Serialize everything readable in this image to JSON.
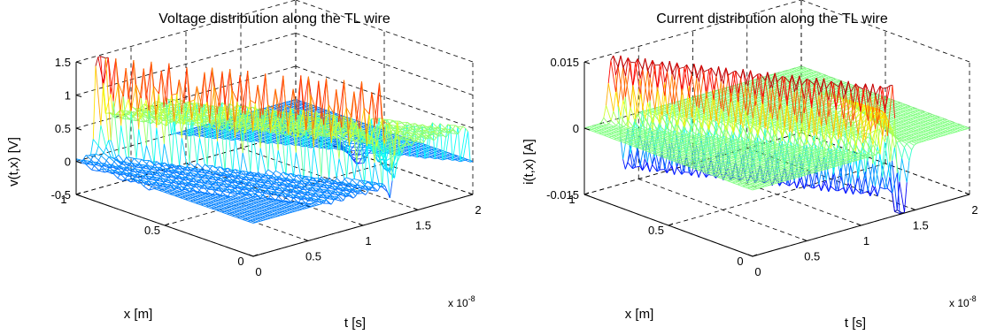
{
  "colormap": [
    "#00008f",
    "#0000ff",
    "#0080ff",
    "#00ffff",
    "#80ff80",
    "#ffff00",
    "#ff8000",
    "#ff0000",
    "#800000"
  ],
  "chart_data": [
    {
      "type": "surface",
      "title": "Voltage distribution along the TL wire",
      "xlabel": "x [m]",
      "tlabel": "t [s]",
      "zlabel": "v(t,x) [V]",
      "t_scale_label": "x 10",
      "t_scale_exp": "-8",
      "xlim": [
        0,
        1
      ],
      "tlim": [
        0,
        2e-08
      ],
      "zlim": [
        -0.5,
        1.5
      ],
      "x_ticks": [
        "0",
        "0.5",
        "1"
      ],
      "t_ticks": [
        "0",
        "0.5",
        "1",
        "1.5",
        "2"
      ],
      "z_ticks": [
        "-0.5",
        "0",
        "0.5",
        "1",
        "1.5"
      ],
      "z_tick_values": [
        -0.5,
        0,
        0.5,
        1,
        1.5
      ],
      "grid": true,
      "baseline": 0,
      "surface_description": "Incident voltage pulse (peak ~1.45 V at x=1, t~0.2e-8 s) travels toward x=0 arriving near t=1.3e-8 s, followed by a negative reflected dip (~-0.45 V)",
      "peaks": [
        {
          "x": 1.0,
          "t": 2e-09,
          "v": 1.45
        },
        {
          "x": 0.0,
          "t": 1.35e-08,
          "v": -0.45
        }
      ]
    },
    {
      "type": "surface",
      "title": "Current distribution along the TL wire",
      "xlabel": "x [m]",
      "tlabel": "t [s]",
      "zlabel": "i(t,x) [A]",
      "t_scale_label": "x 10",
      "t_scale_exp": "-8",
      "xlim": [
        0,
        1
      ],
      "tlim": [
        0,
        2e-08
      ],
      "zlim": [
        -0.015,
        0.015
      ],
      "x_ticks": [
        "0",
        "0.5",
        "1"
      ],
      "t_ticks": [
        "0",
        "0.5",
        "1",
        "1.5",
        "2"
      ],
      "z_ticks": [
        "-0.015",
        "0",
        "0.015"
      ],
      "z_tick_values": [
        -0.015,
        0,
        0.015
      ],
      "grid": true,
      "baseline": 0,
      "surface_description": "Current pulse (peak ~0.015 A) travels with the voltage wave, reverses sign on reflection (~-0.012 A near x=0, t~1.35e-8 s)",
      "peaks": [
        {
          "x": 1.0,
          "t": 3e-09,
          "i": 0.015
        },
        {
          "x": 0.0,
          "t": 1.35e-08,
          "i": -0.012
        }
      ]
    }
  ]
}
